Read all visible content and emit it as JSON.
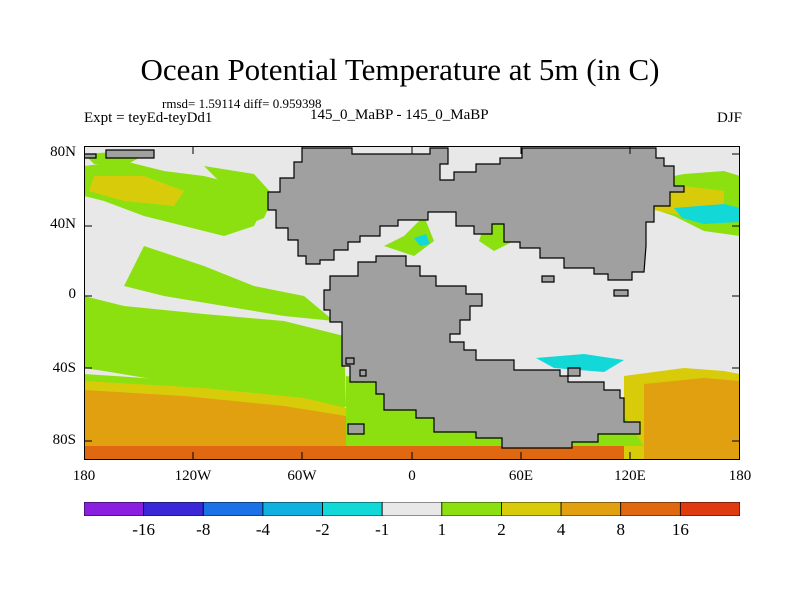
{
  "title": "Ocean Potential Temperature at 5m (in C)",
  "stats_text": "rmsd= 1.59114 diff= 0.959398",
  "experiment_label": "Expt = teyEd-teyDd1",
  "subtitle": "145_0_MaBP - 145_0_MaBP",
  "season": "DJF",
  "map_data": {
    "type": "heatmap",
    "lon_range": [
      -180,
      180
    ],
    "lat_range": [
      -90,
      90
    ],
    "y_ticks": [
      {
        "value": 80,
        "label": "80N"
      },
      {
        "value": 40,
        "label": "40N"
      },
      {
        "value": 0,
        "label": "0"
      },
      {
        "value": -40,
        "label": "40S"
      },
      {
        "value": -80,
        "label": "80S"
      }
    ],
    "x_ticks": [
      {
        "value": -180,
        "label": "180"
      },
      {
        "value": -120,
        "label": "120W"
      },
      {
        "value": -60,
        "label": "60W"
      },
      {
        "value": 0,
        "label": "0"
      },
      {
        "value": 60,
        "label": "60E"
      },
      {
        "value": 120,
        "label": "120E"
      },
      {
        "value": 180,
        "label": "180"
      }
    ]
  },
  "colorbar": {
    "colors": [
      "#8a1fe0",
      "#3a28d8",
      "#1a72e6",
      "#10b0e0",
      "#13d8d8",
      "#e8e8e8",
      "#8ce010",
      "#d8cc0a",
      "#e0a010",
      "#e06810",
      "#e03a10"
    ],
    "labels": [
      "-16",
      "-8",
      "-4",
      "-2",
      "-1",
      "1",
      "2",
      "4",
      "8",
      "16"
    ]
  },
  "colors": {
    "land": "#a0a0a0",
    "land_edge": "#000000",
    "neutral": "#e8e8e8"
  }
}
